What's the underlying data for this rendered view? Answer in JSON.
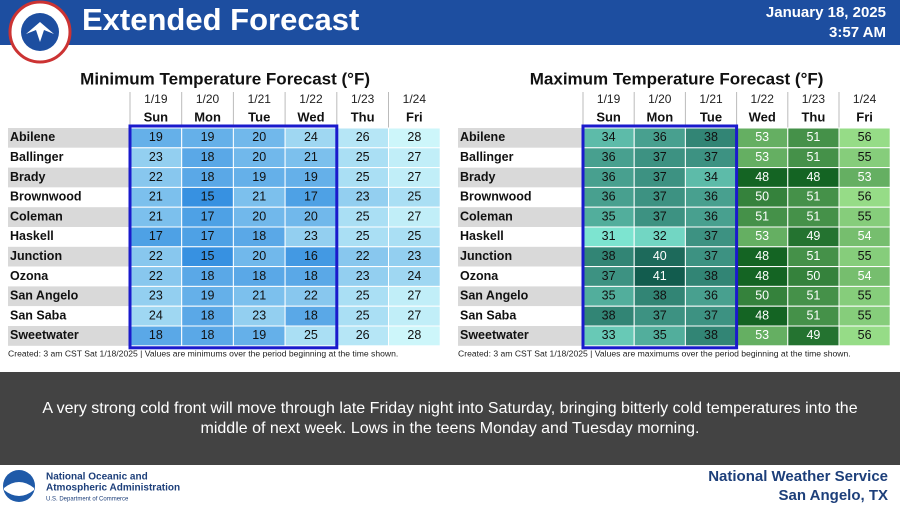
{
  "header": {
    "title": "Extended Forecast",
    "date": "January 18, 2025",
    "time": "3:57 AM"
  },
  "min_table": {
    "title": "Minimum Temperature Forecast (°F)",
    "dates": [
      "1/19",
      "1/20",
      "1/21",
      "1/22",
      "1/23",
      "1/24"
    ],
    "days": [
      "Sun",
      "Mon",
      "Tue",
      "Wed",
      "Thu",
      "Fri"
    ],
    "rows": [
      {
        "name": "Abilene",
        "values": [
          19,
          19,
          20,
          24,
          26,
          28
        ]
      },
      {
        "name": "Ballinger",
        "values": [
          23,
          18,
          20,
          21,
          25,
          27
        ]
      },
      {
        "name": "Brady",
        "values": [
          22,
          18,
          19,
          19,
          25,
          27
        ]
      },
      {
        "name": "Brownwood",
        "values": [
          21,
          15,
          21,
          17,
          23,
          25
        ]
      },
      {
        "name": "Coleman",
        "values": [
          21,
          17,
          20,
          20,
          25,
          27
        ]
      },
      {
        "name": "Haskell",
        "values": [
          17,
          17,
          18,
          23,
          25,
          25
        ]
      },
      {
        "name": "Junction",
        "values": [
          22,
          15,
          20,
          16,
          22,
          23
        ]
      },
      {
        "name": "Ozona",
        "values": [
          22,
          18,
          18,
          18,
          23,
          24
        ]
      },
      {
        "name": "San Angelo",
        "values": [
          23,
          19,
          21,
          22,
          25,
          27
        ]
      },
      {
        "name": "San Saba",
        "values": [
          24,
          18,
          23,
          18,
          25,
          27
        ]
      },
      {
        "name": "Sweetwater",
        "values": [
          18,
          18,
          19,
          25,
          26,
          28
        ]
      }
    ],
    "footnote": "Created: 3 am CST Sat 1/18/2025  |  Values are minimums over the period beginning at the time shown."
  },
  "max_table": {
    "title": "Maximum Temperature Forecast (°F)",
    "dates": [
      "1/19",
      "1/20",
      "1/21",
      "1/22",
      "1/23",
      "1/24"
    ],
    "days": [
      "Sun",
      "Mon",
      "Tue",
      "Wed",
      "Thu",
      "Fri"
    ],
    "rows": [
      {
        "name": "Abilene",
        "values": [
          34,
          36,
          38,
          53,
          51,
          56
        ]
      },
      {
        "name": "Ballinger",
        "values": [
          36,
          37,
          37,
          53,
          51,
          55
        ]
      },
      {
        "name": "Brady",
        "values": [
          36,
          37,
          34,
          48,
          48,
          53
        ]
      },
      {
        "name": "Brownwood",
        "values": [
          36,
          37,
          36,
          50,
          51,
          56
        ]
      },
      {
        "name": "Coleman",
        "values": [
          35,
          37,
          36,
          51,
          51,
          55
        ]
      },
      {
        "name": "Haskell",
        "values": [
          31,
          32,
          37,
          53,
          49,
          54
        ]
      },
      {
        "name": "Junction",
        "values": [
          38,
          40,
          37,
          48,
          51,
          55
        ]
      },
      {
        "name": "Ozona",
        "values": [
          37,
          41,
          38,
          48,
          50,
          54
        ]
      },
      {
        "name": "San Angelo",
        "values": [
          35,
          38,
          36,
          50,
          51,
          55
        ]
      },
      {
        "name": "San Saba",
        "values": [
          38,
          37,
          37,
          48,
          51,
          55
        ]
      },
      {
        "name": "Sweetwater",
        "values": [
          33,
          35,
          38,
          53,
          49,
          56
        ]
      }
    ],
    "footnote": "Created: 3 am CST Sat 1/18/2025  |  Values are maximums over the period beginning at the time shown."
  },
  "summary": "A very strong cold front will move through late Friday night into Saturday, bringing bitterly cold temperatures into the middle of next week. Lows in the teens Monday and Tuesday morning.",
  "footer": {
    "agency_line1": "National Oceanic and",
    "agency_line2": "Atmospheric Administration",
    "department": "U.S. Department of Commerce",
    "office": "National Weather Service",
    "location": "San Angelo, TX"
  }
}
